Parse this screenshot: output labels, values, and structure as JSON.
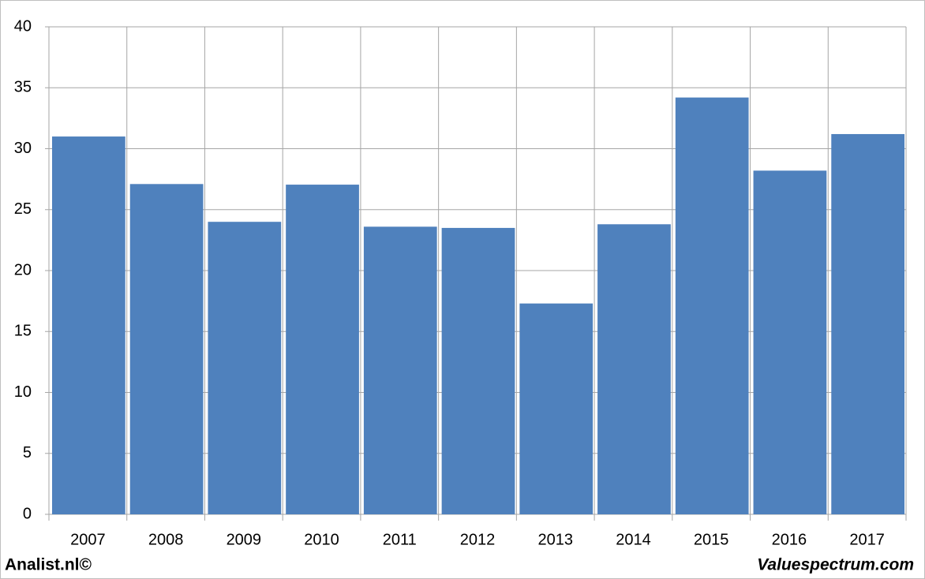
{
  "chart_data": {
    "type": "bar",
    "categories": [
      "2007",
      "2008",
      "2009",
      "2010",
      "2011",
      "2012",
      "2013",
      "2014",
      "2015",
      "2016",
      "2017"
    ],
    "values": [
      31.0,
      27.1,
      24.0,
      27.05,
      23.6,
      23.5,
      17.3,
      23.8,
      34.2,
      28.2,
      31.2
    ],
    "color": "#4f81bd",
    "ylim": [
      0,
      40
    ],
    "yticks": [
      0,
      5,
      10,
      15,
      20,
      25,
      30,
      35,
      40
    ],
    "grid": true,
    "footer_left": "Analist.nl©",
    "footer_right": "Valuespectrum.com"
  }
}
